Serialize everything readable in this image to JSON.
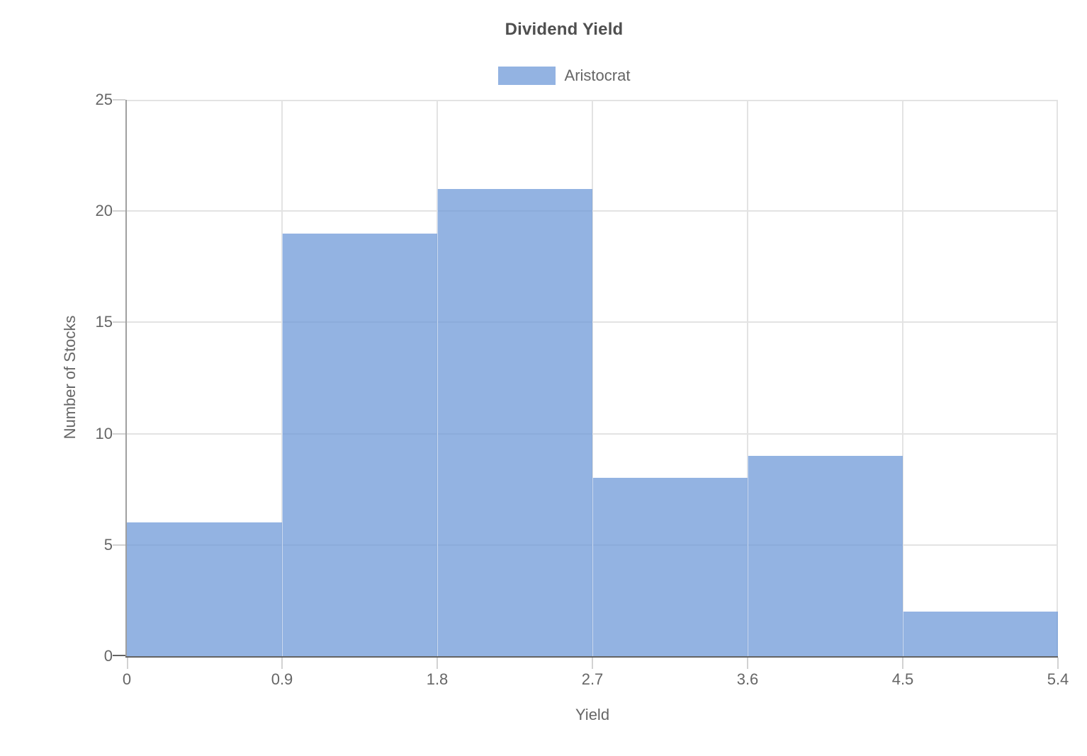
{
  "chart_data": {
    "type": "bar",
    "subtype": "histogram",
    "title": "Dividend Yield",
    "xlabel": "Yield",
    "ylabel": "Number of Stocks",
    "series": [
      {
        "name": "Aristocrat",
        "values": [
          6,
          19,
          21,
          8,
          9,
          2
        ]
      }
    ],
    "bin_edges": [
      0,
      0.9,
      1.8,
      2.7,
      3.6,
      4.5,
      5.4
    ],
    "categories": [
      "0-0.9",
      "0.9-1.8",
      "1.8-2.7",
      "2.7-3.6",
      "3.6-4.5",
      "4.5-5.4"
    ],
    "xticks": [
      "0",
      "0.9",
      "1.8",
      "2.7",
      "3.6",
      "4.5",
      "5.4"
    ],
    "yticks": [
      "0",
      "5",
      "10",
      "15",
      "20",
      "25"
    ],
    "xlim": [
      0,
      5.4
    ],
    "ylim": [
      0,
      25
    ],
    "grid": true,
    "legend_position": "top",
    "colors": {
      "bar_fill": "rgba(111, 154, 216, 0.75)",
      "bar_fill_hex_over_white": "#97b5e3",
      "gridline": "#e3e3e3",
      "y_axis_line": "#a0a0a0",
      "x_axis_line": "#636363",
      "text": "#666666",
      "title_text": "#4f4f4f"
    }
  }
}
